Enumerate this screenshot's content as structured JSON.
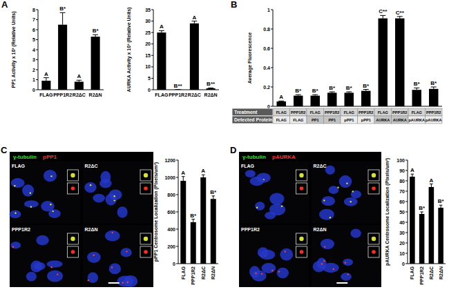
{
  "chart_data": [
    {
      "type": "bar",
      "ylabel": "PP1 Activity x 10³ (Relative Units)",
      "categories": [
        "FLAG",
        "PPP1R2",
        "R2ΔC",
        "R2ΔN"
      ],
      "values": [
        0.9,
        6.5,
        0.8,
        5.3
      ],
      "errors": [
        0.3,
        1.2,
        0.15,
        0.2
      ],
      "annotations": [
        "A",
        "B*",
        "A",
        "B*"
      ],
      "ylim": [
        0,
        8
      ],
      "yticks": [
        0,
        1,
        2,
        3,
        4,
        5,
        6,
        7,
        8
      ],
      "color": "#000000"
    },
    {
      "type": "bar",
      "ylabel": "AURKA Activity x 10³ (Relative Units)",
      "categories": [
        "FLAG",
        "PPP1R2",
        "R2ΔC",
        "R2ΔN"
      ],
      "values": [
        25,
        0.05,
        29,
        0.6
      ],
      "errors": [
        0.8,
        0.05,
        1,
        0.2
      ],
      "annotations": [
        "A",
        "B**",
        "A",
        "B**"
      ],
      "ylim": [
        0,
        35
      ],
      "yticks": [
        0,
        5,
        10,
        15,
        20,
        25,
        30,
        35
      ],
      "color": "#000000"
    },
    {
      "type": "bar",
      "ylabel": "Average Fluorescence",
      "categories": [
        null,
        null,
        null,
        null,
        null,
        null,
        null,
        null,
        null,
        null
      ],
      "values": [
        0.05,
        0.11,
        0.11,
        0.14,
        0.14,
        0.16,
        0.91,
        0.91,
        0.17,
        0.18
      ],
      "errors": [
        0.005,
        0.01,
        0.01,
        0.01,
        0.01,
        0.015,
        0.03,
        0.02,
        0.02,
        0.02
      ],
      "annotations": [
        "A",
        "B*",
        "B*",
        "B*",
        "B*",
        "B*",
        "C**",
        "C**",
        "B*",
        "B*"
      ],
      "ylim": [
        0,
        1
      ],
      "yticks": [
        0,
        0.2,
        0.4,
        0.6,
        0.8,
        1
      ],
      "tick_labels": "y",
      "color": "#000000"
    },
    {
      "type": "bar",
      "ylabel": "pPP1 Centrosome Localization (Pixels/um²)",
      "categories": [
        "FLAG",
        "PPP1R2",
        "R2ΔC",
        "R2ΔN"
      ],
      "values": [
        960,
        480,
        1000,
        750
      ],
      "errors": [
        50,
        35,
        30,
        35
      ],
      "annotations": [
        "A",
        "B*",
        "A",
        "B*"
      ],
      "ylim": [
        0,
        1200
      ],
      "yticks": [
        0,
        200,
        400,
        600,
        800,
        1000,
        1200
      ],
      "color": "#000000"
    },
    {
      "type": "bar",
      "ylabel": "pAURKA Centrosome Localization (Pixels/um²)",
      "categories": [
        "FLAG",
        "PPP1R2",
        "R2ΔC",
        "R2ΔN"
      ],
      "values": [
        84,
        48,
        74,
        54
      ],
      "errors": [
        2.5,
        2,
        3,
        2.5
      ],
      "annotations": [
        "A",
        "B*",
        "A",
        "B*"
      ],
      "ylim": [
        0,
        100
      ],
      "yticks": [
        0,
        10,
        20,
        30,
        40,
        50,
        60,
        70,
        80,
        90,
        100
      ],
      "color": "#000000"
    }
  ],
  "panel_labels": [
    "A",
    "B",
    "C",
    "D"
  ],
  "panel_b_table": {
    "row_headers": [
      "Treatment",
      "Detected Protein"
    ],
    "rows": [
      [
        "FLAG",
        "PPP1R2",
        "FLAG",
        "PPP1R2",
        "FLAG",
        "PPP1R2",
        "FLAG",
        "PPP1R2",
        "FLAG",
        "PPP1R2"
      ],
      [
        "FLAG",
        "FLAG",
        "PP1",
        "PP1",
        "pPP1",
        "pPP1",
        "AURKA",
        "AURKA",
        "pAURKA",
        "pAURKA"
      ]
    ]
  },
  "micrographs": [
    {
      "stains": [
        "γ-tubulin",
        "pPP1"
      ],
      "stain_colors": [
        "#33e033",
        "#ff3030"
      ],
      "conditions": [
        "FLAG",
        "R2ΔC",
        "PPP1R2",
        "R2ΔN"
      ]
    },
    {
      "stains": [
        "γ-tubulin",
        "pAURKA"
      ],
      "stain_colors": [
        "#33e033",
        "#ff3030"
      ],
      "conditions": [
        "FLAG",
        "R2ΔC",
        "PPP1R2",
        "R2ΔN"
      ]
    }
  ]
}
